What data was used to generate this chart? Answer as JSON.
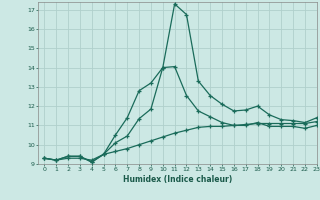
{
  "xlabel": "Humidex (Indice chaleur)",
  "bg_color": "#cce8e4",
  "grid_color": "#b0d0cc",
  "line_color": "#1a6b5a",
  "xmin": -0.5,
  "xmax": 23,
  "ymin": 9,
  "ymax": 17.4,
  "series1_x": [
    0,
    1,
    2,
    3,
    4,
    5,
    6,
    7,
    8,
    9,
    10,
    11,
    12,
    13,
    14,
    15,
    16,
    17,
    18,
    19,
    20,
    21,
    22,
    23
  ],
  "series1_y": [
    9.3,
    9.2,
    9.4,
    9.4,
    9.1,
    9.5,
    10.5,
    11.4,
    12.8,
    13.2,
    14.0,
    17.3,
    16.75,
    13.3,
    12.55,
    12.1,
    11.75,
    11.8,
    12.0,
    11.55,
    11.3,
    11.25,
    11.15,
    11.4
  ],
  "series2_x": [
    0,
    1,
    2,
    3,
    4,
    5,
    6,
    7,
    8,
    9,
    10,
    11,
    12,
    13,
    14,
    15,
    16,
    17,
    18,
    19,
    20,
    21,
    22,
    23
  ],
  "series2_y": [
    9.3,
    9.2,
    9.4,
    9.4,
    9.1,
    9.5,
    10.1,
    10.45,
    11.35,
    11.85,
    14.0,
    14.05,
    12.55,
    11.75,
    11.45,
    11.15,
    11.0,
    11.0,
    11.15,
    10.95,
    10.95,
    10.95,
    10.85,
    11.0
  ],
  "series3_x": [
    0,
    1,
    2,
    3,
    4,
    5,
    6,
    7,
    8,
    9,
    10,
    11,
    12,
    13,
    14,
    15,
    16,
    17,
    18,
    19,
    20,
    21,
    22,
    23
  ],
  "series3_y": [
    9.3,
    9.2,
    9.3,
    9.3,
    9.2,
    9.5,
    9.65,
    9.8,
    10.0,
    10.2,
    10.4,
    10.6,
    10.75,
    10.9,
    10.95,
    10.95,
    11.0,
    11.05,
    11.1,
    11.1,
    11.1,
    11.1,
    11.1,
    11.2
  ],
  "ytick_values": [
    9,
    10,
    11,
    12,
    13,
    14,
    15,
    16,
    17
  ],
  "xtick_values": [
    0,
    1,
    2,
    3,
    4,
    5,
    6,
    7,
    8,
    9,
    10,
    11,
    12,
    13,
    14,
    15,
    16,
    17,
    18,
    19,
    20,
    21,
    22,
    23
  ]
}
